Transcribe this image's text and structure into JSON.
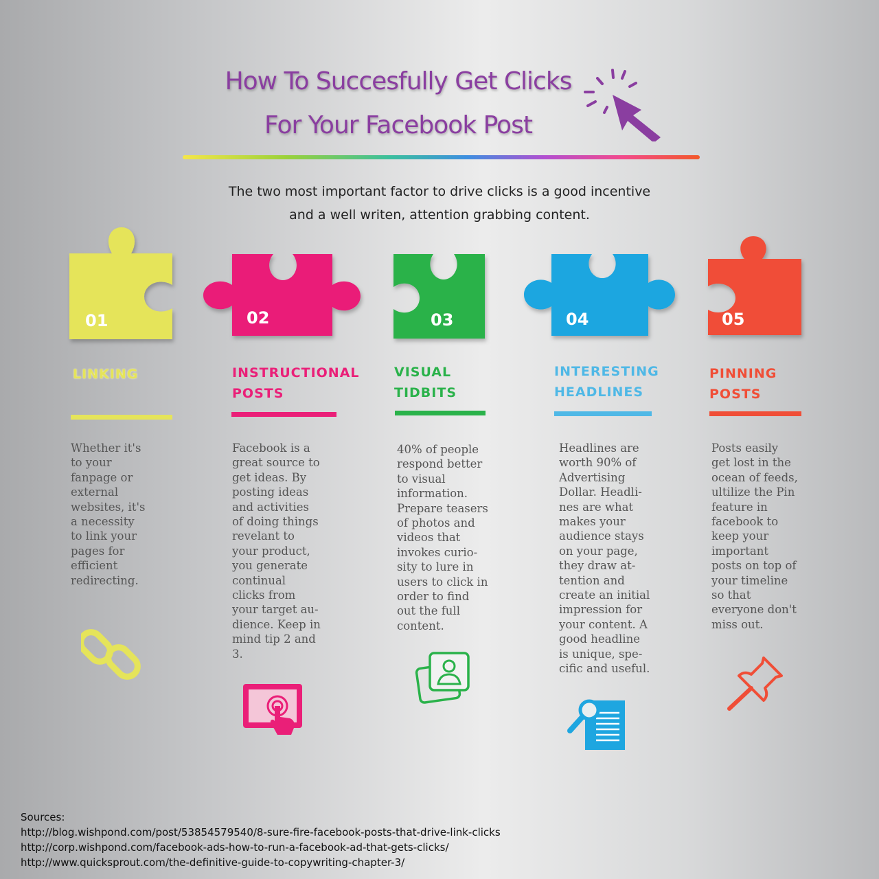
{
  "title": {
    "line1": "How To Succesfully Get Clicks",
    "line2": "For Your Facebook Post"
  },
  "intro": {
    "line1": "The two most important factor to drive clicks is a good incentive",
    "line2": "and a well writen, attention grabbing content."
  },
  "colors": {
    "title": "#8a3ea0",
    "tip1": "#e5e45a",
    "tip2": "#ea1f78",
    "tip3": "#2ab24a",
    "tip4": "#1ea6e0",
    "tip5": "#f04e37"
  },
  "tips": [
    {
      "number": "01",
      "label": "LINKING",
      "icon": "chain-link-icon",
      "text": "Whether it's\nto your\nfanpage or\nexternal\nwebsites, it's\na necessity\nto link your\npages for\nefficient\nredirecting."
    },
    {
      "number": "02",
      "label": "INSTRUCTIONAL\nPOSTS",
      "icon": "tablet-touch-icon",
      "text": "Facebook is a\ngreat source to\nget ideas. By\nposting ideas\nand activities\nof doing things\nrevelant to\nyour product,\nyou generate\ncontinual\nclicks from\nyour target au-\ndience. Keep in\nmind tip 2 and\n3."
    },
    {
      "number": "03",
      "label": "VISUAL\nTIDBITS",
      "icon": "photo-profile-icon",
      "text": "40% of people\nrespond better\nto visual\ninformation.\nPrepare teasers\nof photos and\nvideos that\ninvokes curio-\nsity to lure in\nusers to click in\norder to find\nout the full\ncontent."
    },
    {
      "number": "04",
      "label": "INTERESTING\nHEADLINES",
      "icon": "document-search-icon",
      "text": "Headlines are\nworth 90% of\nAdvertising\nDollar. Headli-\nnes are what\nmakes your\naudience stays\non your page,\nthey draw at-\ntention and\ncreate an initial\nimpression for\nyour content. A\ngood headline\nis unique, spe-\ncific and useful."
    },
    {
      "number": "05",
      "label": "PINNING\nPOSTS",
      "icon": "push-pin-icon",
      "text": "Posts easily\nget lost in the\nocean of feeds,\nultilize the Pin\nfeature in\nfacebook to\nkeep your\nimportant\nposts on top of\nyour timeline\nso that\neveryone don't\nmiss out."
    }
  ],
  "sources": {
    "heading": "Sources:",
    "links": [
      "http://blog.wishpond.com/post/53854579540/8-sure-fire-facebook-posts-that-drive-link-clicks",
      "http://corp.wishpond.com/facebook-ads-how-to-run-a-facebook-ad-that-gets-clicks/",
      "http://www.quicksprout.com/the-definitive-guide-to-copywriting-chapter-3/"
    ]
  }
}
